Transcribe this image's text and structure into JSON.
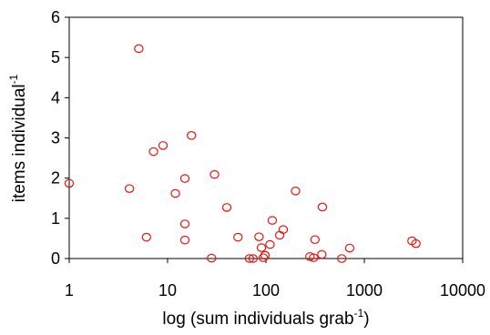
{
  "chart_data": {
    "type": "scatter",
    "title": "",
    "xlabel": {
      "main": "log (sum individuals grab",
      "superscript": "-1",
      "suffix": ")"
    },
    "ylabel": {
      "main": "items  individual",
      "superscript": "-1"
    },
    "x_scale": "log",
    "xlim": [
      1,
      10000
    ],
    "ylim": [
      0,
      6
    ],
    "x_ticks": [
      {
        "value": 1,
        "label": "1"
      },
      {
        "value": 10,
        "label": "10"
      },
      {
        "value": 100,
        "label": "100"
      },
      {
        "value": 1000,
        "label": "1000"
      },
      {
        "value": 10000,
        "label": "10000"
      }
    ],
    "y_ticks": [
      {
        "value": 0,
        "label": "0"
      },
      {
        "value": 1,
        "label": "1"
      },
      {
        "value": 2,
        "label": "2"
      },
      {
        "value": 3,
        "label": "3"
      },
      {
        "value": 4,
        "label": "4"
      },
      {
        "value": 5,
        "label": "5"
      },
      {
        "value": 6,
        "label": "6"
      }
    ],
    "grid": false,
    "legend": "none",
    "marker": "open-circle",
    "marker_color": "#e8130f",
    "axis_color": "#000000",
    "series": [
      {
        "points": [
          {
            "x": 1.0,
            "y": 1.87
          },
          {
            "x": 4.1,
            "y": 1.74
          },
          {
            "x": 5.1,
            "y": 5.22
          },
          {
            "x": 6.1,
            "y": 0.53
          },
          {
            "x": 7.2,
            "y": 2.66
          },
          {
            "x": 9.0,
            "y": 2.81
          },
          {
            "x": 12.0,
            "y": 1.62
          },
          {
            "x": 15.0,
            "y": 1.99
          },
          {
            "x": 15.0,
            "y": 0.86
          },
          {
            "x": 15.0,
            "y": 0.46
          },
          {
            "x": 17.5,
            "y": 3.06
          },
          {
            "x": 28.0,
            "y": 0.01
          },
          {
            "x": 30.0,
            "y": 2.09
          },
          {
            "x": 40.0,
            "y": 1.27
          },
          {
            "x": 52.0,
            "y": 0.53
          },
          {
            "x": 68.0,
            "y": 0.0
          },
          {
            "x": 74.0,
            "y": 0.0
          },
          {
            "x": 85.0,
            "y": 0.54
          },
          {
            "x": 90.0,
            "y": 0.27
          },
          {
            "x": 94.0,
            "y": 0.02
          },
          {
            "x": 98.0,
            "y": 0.08
          },
          {
            "x": 110.0,
            "y": 0.35
          },
          {
            "x": 116.0,
            "y": 0.95
          },
          {
            "x": 138.0,
            "y": 0.58
          },
          {
            "x": 150.0,
            "y": 0.72
          },
          {
            "x": 200.0,
            "y": 1.68
          },
          {
            "x": 280.0,
            "y": 0.05
          },
          {
            "x": 305.0,
            "y": 0.02
          },
          {
            "x": 315.0,
            "y": 0.47
          },
          {
            "x": 375.0,
            "y": 1.28
          },
          {
            "x": 370.0,
            "y": 0.1
          },
          {
            "x": 590.0,
            "y": 0.0
          },
          {
            "x": 710.0,
            "y": 0.26
          },
          {
            "x": 3050.0,
            "y": 0.44
          },
          {
            "x": 3350.0,
            "y": 0.37
          }
        ]
      }
    ]
  }
}
